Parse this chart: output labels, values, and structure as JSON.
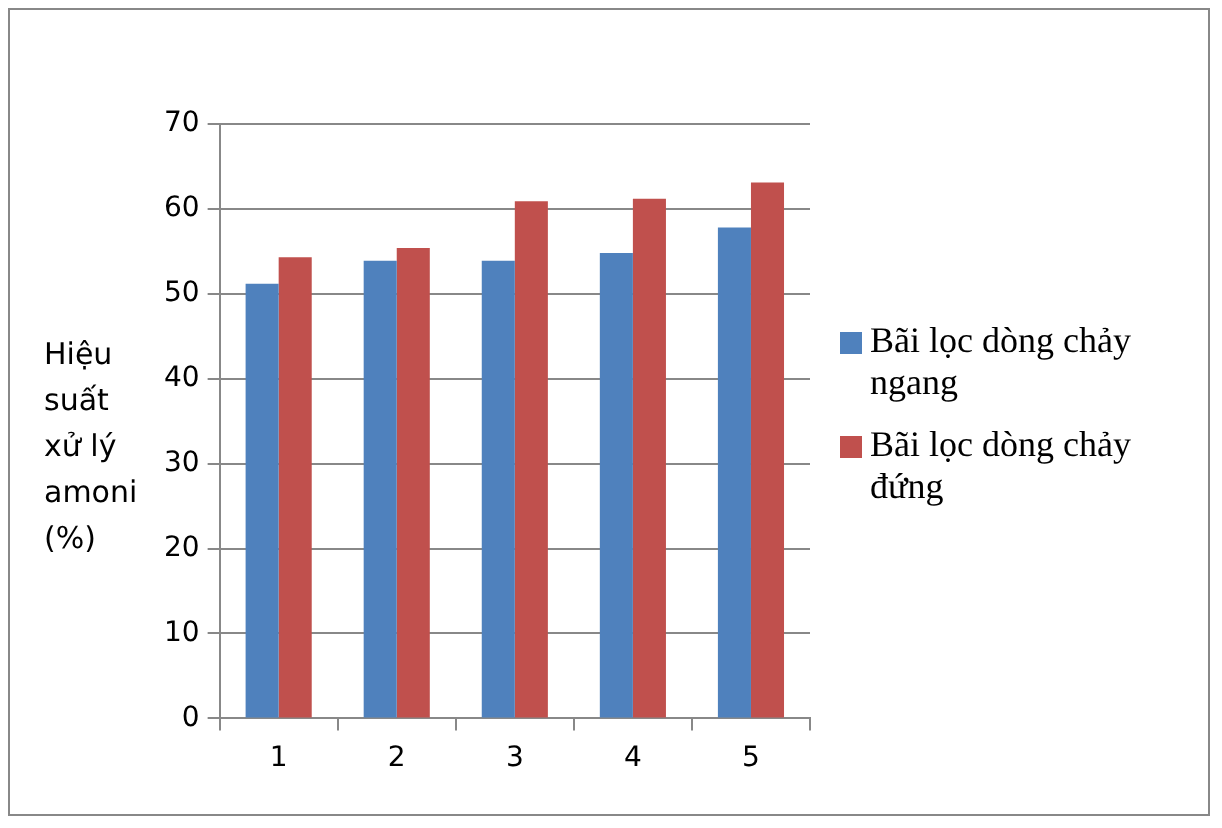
{
  "chart_data": {
    "type": "bar",
    "ylabel": "Hiệu suất xử lý amoni (%)",
    "categories": [
      "1",
      "2",
      "3",
      "4",
      "5"
    ],
    "series": [
      {
        "name": "Bãi lọc dòng chảy ngang",
        "color": "#4f81bd",
        "values": [
          51.2,
          53.9,
          53.9,
          54.8,
          57.8
        ]
      },
      {
        "name": "Bãi lọc dòng chảy đứng",
        "color": "#c0504d",
        "values": [
          54.3,
          55.4,
          60.9,
          61.2,
          63.1
        ]
      }
    ],
    "ylim": [
      0,
      70
    ],
    "yticks": [
      0,
      10,
      20,
      30,
      40,
      50,
      60,
      70
    ],
    "grid": "y",
    "legend": "right"
  }
}
